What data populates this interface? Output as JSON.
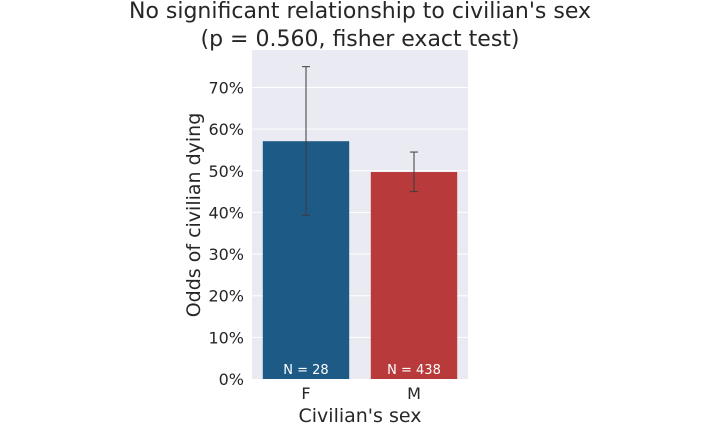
{
  "chart_data": {
    "type": "bar",
    "title_lines": [
      "No significant relationship to civilian's sex",
      "(p = 0.560, fisher exact test)"
    ],
    "xlabel": "Civilian's sex",
    "ylabel": "Odds of civilian dying",
    "categories": [
      "F",
      "M"
    ],
    "values": [
      0.571,
      0.497
    ],
    "error_low": [
      0.393,
      0.45
    ],
    "error_high": [
      0.75,
      0.545
    ],
    "bar_labels": [
      "N = 28",
      "N = 438"
    ],
    "colors": [
      "#1d5a85",
      "#b83a3b"
    ],
    "ylim": [
      0,
      0.79
    ],
    "yticks": [
      0,
      0.1,
      0.2,
      0.3,
      0.4,
      0.5,
      0.6,
      0.7
    ],
    "ytick_labels": [
      "0%",
      "10%",
      "20%",
      "30%",
      "40%",
      "50%",
      "60%",
      "70%"
    ],
    "grid": true,
    "background": "#eaeaf2"
  }
}
